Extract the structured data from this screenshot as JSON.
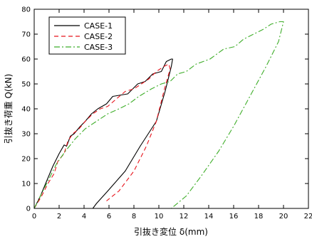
{
  "chart_data": {
    "type": "line",
    "xlabel": "引抜き変位 δ(mm)",
    "ylabel": "引抜き荷重 Q(kN)",
    "xlim": [
      0,
      22
    ],
    "ylim": [
      0,
      80
    ],
    "x_ticks": [
      0,
      2,
      4,
      6,
      8,
      10,
      12,
      14,
      16,
      18,
      20,
      22
    ],
    "y_ticks": [
      0,
      10,
      20,
      30,
      40,
      50,
      60,
      70,
      80
    ],
    "legend_position": "top-left",
    "series": [
      {
        "name": "CASE-1",
        "color": "#000000",
        "dash": "solid",
        "points": [
          [
            0,
            0
          ],
          [
            0.5,
            5
          ],
          [
            1.0,
            11
          ],
          [
            1.5,
            17
          ],
          [
            2.0,
            22
          ],
          [
            2.4,
            25.5
          ],
          [
            2.6,
            25
          ],
          [
            2.9,
            29
          ],
          [
            3.2,
            30
          ],
          [
            3.7,
            33
          ],
          [
            4.1,
            35
          ],
          [
            4.6,
            38
          ],
          [
            5.1,
            40
          ],
          [
            5.8,
            42
          ],
          [
            6.3,
            45
          ],
          [
            7.5,
            46
          ],
          [
            8.3,
            50
          ],
          [
            8.9,
            51
          ],
          [
            9.5,
            54
          ],
          [
            10.2,
            55
          ],
          [
            10.6,
            59
          ],
          [
            11.0,
            60
          ],
          [
            11.1,
            60
          ],
          [
            11.0,
            57
          ],
          [
            10.5,
            47
          ],
          [
            9.8,
            35
          ],
          [
            8.5,
            25
          ],
          [
            7.3,
            15
          ],
          [
            5.9,
            7
          ],
          [
            5.0,
            2
          ],
          [
            4.7,
            0
          ]
        ]
      },
      {
        "name": "CASE-2",
        "color": "#e8141c",
        "dash": "6,4",
        "points": [
          [
            0,
            0
          ],
          [
            0.6,
            5
          ],
          [
            1.1,
            10
          ],
          [
            1.6,
            14
          ],
          [
            1.9,
            19
          ],
          [
            2.4,
            22
          ],
          [
            2.7,
            27
          ],
          [
            3.1,
            30
          ],
          [
            3.6,
            32
          ],
          [
            4.1,
            35
          ],
          [
            4.7,
            38
          ],
          [
            5.3,
            40
          ],
          [
            5.9,
            41
          ],
          [
            6.6,
            44
          ],
          [
            7.3,
            47
          ],
          [
            8.0,
            48
          ],
          [
            8.6,
            50
          ],
          [
            9.2,
            52
          ],
          [
            9.8,
            55
          ],
          [
            10.4,
            57
          ],
          [
            10.8,
            58
          ],
          [
            10.9,
            56
          ],
          [
            10.4,
            47
          ],
          [
            9.8,
            35
          ],
          [
            9.0,
            25
          ],
          [
            8.0,
            15
          ],
          [
            6.8,
            7
          ],
          [
            5.8,
            3
          ]
        ]
      },
      {
        "name": "CASE-3",
        "color": "#3fae2a",
        "dash": "8,3,2,3",
        "points": [
          [
            0,
            0
          ],
          [
            0.6,
            6
          ],
          [
            1.2,
            12
          ],
          [
            1.8,
            18
          ],
          [
            2.5,
            23
          ],
          [
            3.3,
            28
          ],
          [
            4.1,
            32
          ],
          [
            5.0,
            35
          ],
          [
            5.9,
            38
          ],
          [
            6.8,
            40
          ],
          [
            7.6,
            42
          ],
          [
            8.4,
            45
          ],
          [
            9.4,
            48
          ],
          [
            10.2,
            50
          ],
          [
            10.9,
            51
          ],
          [
            11.5,
            54
          ],
          [
            12.2,
            55
          ],
          [
            13.0,
            58
          ],
          [
            14.1,
            60
          ],
          [
            15.2,
            64
          ],
          [
            16.1,
            65
          ],
          [
            16.8,
            68
          ],
          [
            17.6,
            70
          ],
          [
            18.4,
            72
          ],
          [
            19.0,
            74
          ],
          [
            19.7,
            75
          ],
          [
            20.0,
            75
          ],
          [
            19.6,
            67
          ],
          [
            18.6,
            57
          ],
          [
            17.3,
            45
          ],
          [
            16.0,
            33
          ],
          [
            14.8,
            23
          ],
          [
            13.4,
            13
          ],
          [
            12.2,
            5
          ],
          [
            11.0,
            0
          ]
        ]
      }
    ]
  }
}
